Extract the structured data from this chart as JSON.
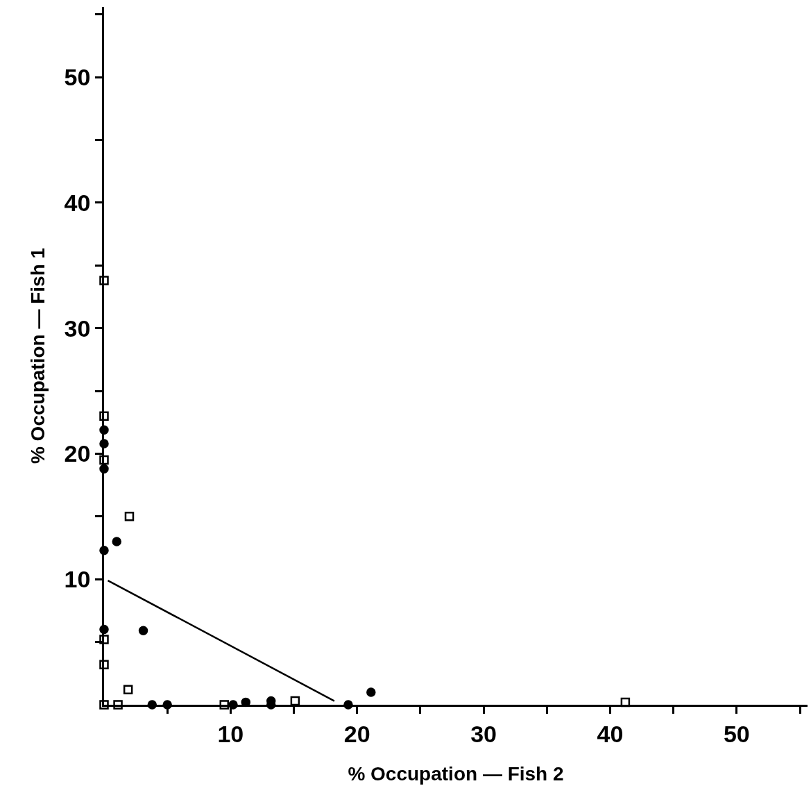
{
  "chart_data": {
    "type": "scatter",
    "xlabel": "% Occupation — Fish 2",
    "ylabel": "% Occupation — Fish 1",
    "xlim": [
      0,
      55.6
    ],
    "ylim": [
      0,
      55.6
    ],
    "xticks": [
      {
        "value": 5,
        "label": null
      },
      10,
      {
        "value": 15,
        "label": null
      },
      20,
      {
        "value": 25,
        "label": null
      },
      30,
      {
        "value": 35,
        "label": null
      },
      40,
      {
        "value": 45,
        "label": null
      },
      50,
      {
        "value": 55,
        "label": null
      }
    ],
    "yticks": [
      {
        "value": 5,
        "label": null
      },
      10,
      {
        "value": 15,
        "label": null
      },
      20,
      {
        "value": 25,
        "label": null
      },
      30,
      {
        "value": 35,
        "label": null
      },
      40,
      {
        "value": 45,
        "label": null
      },
      50,
      {
        "value": 55,
        "label": null
      }
    ],
    "series": [
      {
        "marker": "square-open",
        "color": "#000000",
        "x": [
          0,
          0,
          0,
          2.0,
          0,
          0,
          1.9,
          0,
          1.1,
          9.5,
          15.1,
          41.2
        ],
        "values": [
          33.8,
          23.0,
          19.5,
          15.0,
          5.2,
          3.2,
          1.2,
          0,
          0,
          0,
          0.3,
          0.2
        ]
      },
      {
        "marker": "circle",
        "color": "#000000",
        "x": [
          0,
          0,
          0,
          0,
          1.0,
          0,
          3.1,
          3.8,
          5.0,
          10.2,
          11.2,
          13.2,
          13.2,
          19.3,
          21.1
        ],
        "values": [
          21.9,
          20.8,
          18.8,
          12.3,
          13.0,
          6.0,
          5.9,
          0,
          0,
          0,
          0.2,
          0,
          0.3,
          0,
          1.0
        ]
      },
      {
        "type": "line",
        "marker": "none",
        "color": "#000000",
        "x": [
          0.3,
          18.2
        ],
        "values": [
          9.9,
          0.3
        ]
      }
    ]
  }
}
